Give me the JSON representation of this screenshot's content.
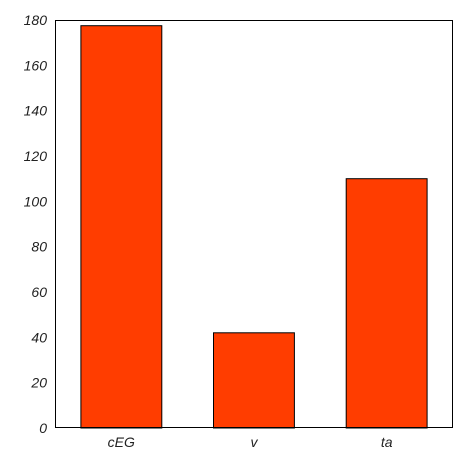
{
  "chart_data": {
    "type": "bar",
    "categories": [
      "cEG",
      "v",
      "ta"
    ],
    "values": [
      177.5,
      42,
      110
    ],
    "ylim": [
      0,
      180
    ],
    "yticks": [
      0,
      20,
      40,
      60,
      80,
      100,
      120,
      140,
      160,
      180
    ],
    "grid": false,
    "bar_color": "#ff3d00",
    "bar_edge_color": "#000000"
  }
}
